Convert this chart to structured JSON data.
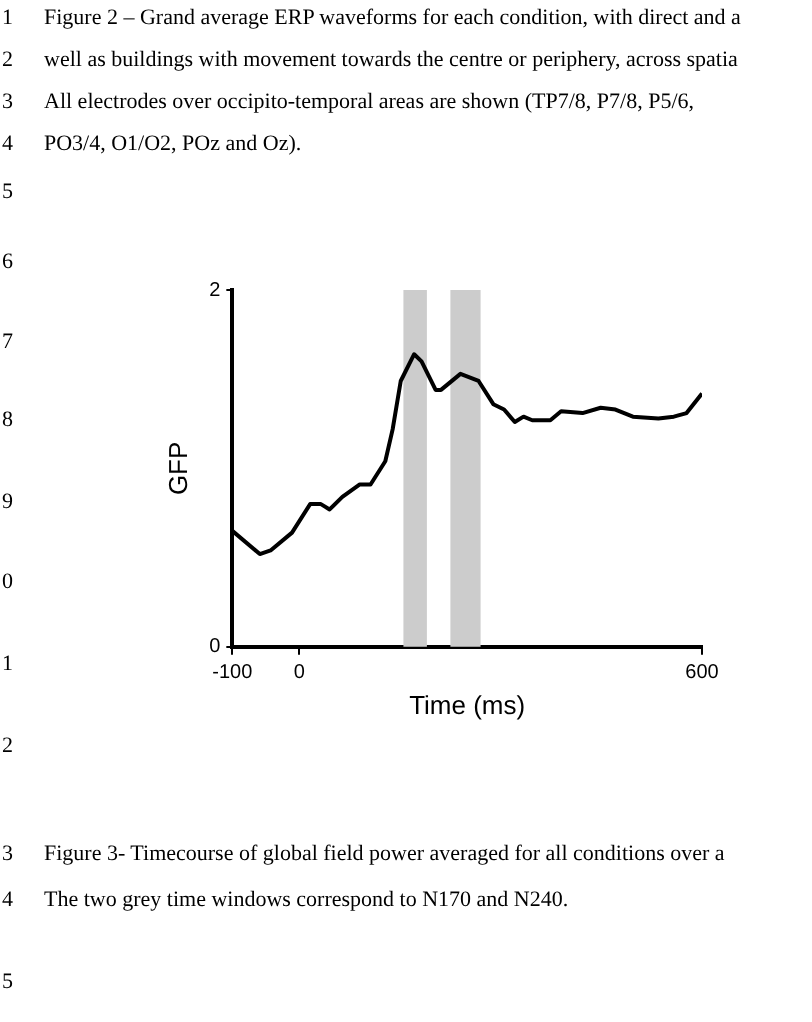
{
  "chart_data": {
    "type": "line",
    "xlabel": "Time (ms)",
    "ylabel": "GFP",
    "x": [
      -100,
      -59,
      -43,
      -11,
      16,
      32,
      45,
      64,
      90,
      106,
      128,
      139,
      151,
      171,
      182,
      203,
      211,
      240,
      267,
      289,
      305,
      321,
      334,
      347,
      374,
      390,
      422,
      449,
      471,
      497,
      535,
      558,
      577,
      600
    ],
    "series": [
      {
        "color": "#000000",
        "values": [
          0.65,
          0.52,
          0.54,
          0.64,
          0.8,
          0.8,
          0.77,
          0.84,
          0.91,
          0.91,
          1.04,
          1.22,
          1.49,
          1.64,
          1.6,
          1.44,
          1.44,
          1.53,
          1.49,
          1.36,
          1.33,
          1.26,
          1.29,
          1.27,
          1.27,
          1.32,
          1.31,
          1.34,
          1.33,
          1.29,
          1.28,
          1.29,
          1.31,
          1.42
        ]
      }
    ],
    "xlim": [
      -100,
      600
    ],
    "xticks": [
      -100,
      0,
      600
    ],
    "ylim": [
      0,
      2
    ],
    "yticks": [
      0,
      2
    ],
    "bands": [
      {
        "axis": "x",
        "from": 155,
        "to": 190,
        "color": "#cccccc"
      },
      {
        "axis": "x",
        "from": 225,
        "to": 270,
        "color": "#cccccc"
      }
    ],
    "grid": false,
    "legend": false,
    "marker": "none",
    "line_style": "solid",
    "annotations": [
      "Figure 2 – Grand average ERP waveforms for each condition, with direct and a",
      "well as buildings with movement towards the centre or periphery, across spatia",
      "All electrodes over occipito-temporal areas are shown (TP7/8, P7/8, P5/6,",
      "PO3/4, O1/O2, POz  and Oz).",
      "Figure 3- Timecourse of global field power averaged for all conditions over a",
      "The two grey time windows correspond to N170 and N240.",
      "1",
      "2",
      "3",
      "4",
      "5",
      "6",
      "7",
      "8",
      "9",
      "0",
      "1",
      "2",
      "3",
      "4",
      "5"
    ]
  }
}
